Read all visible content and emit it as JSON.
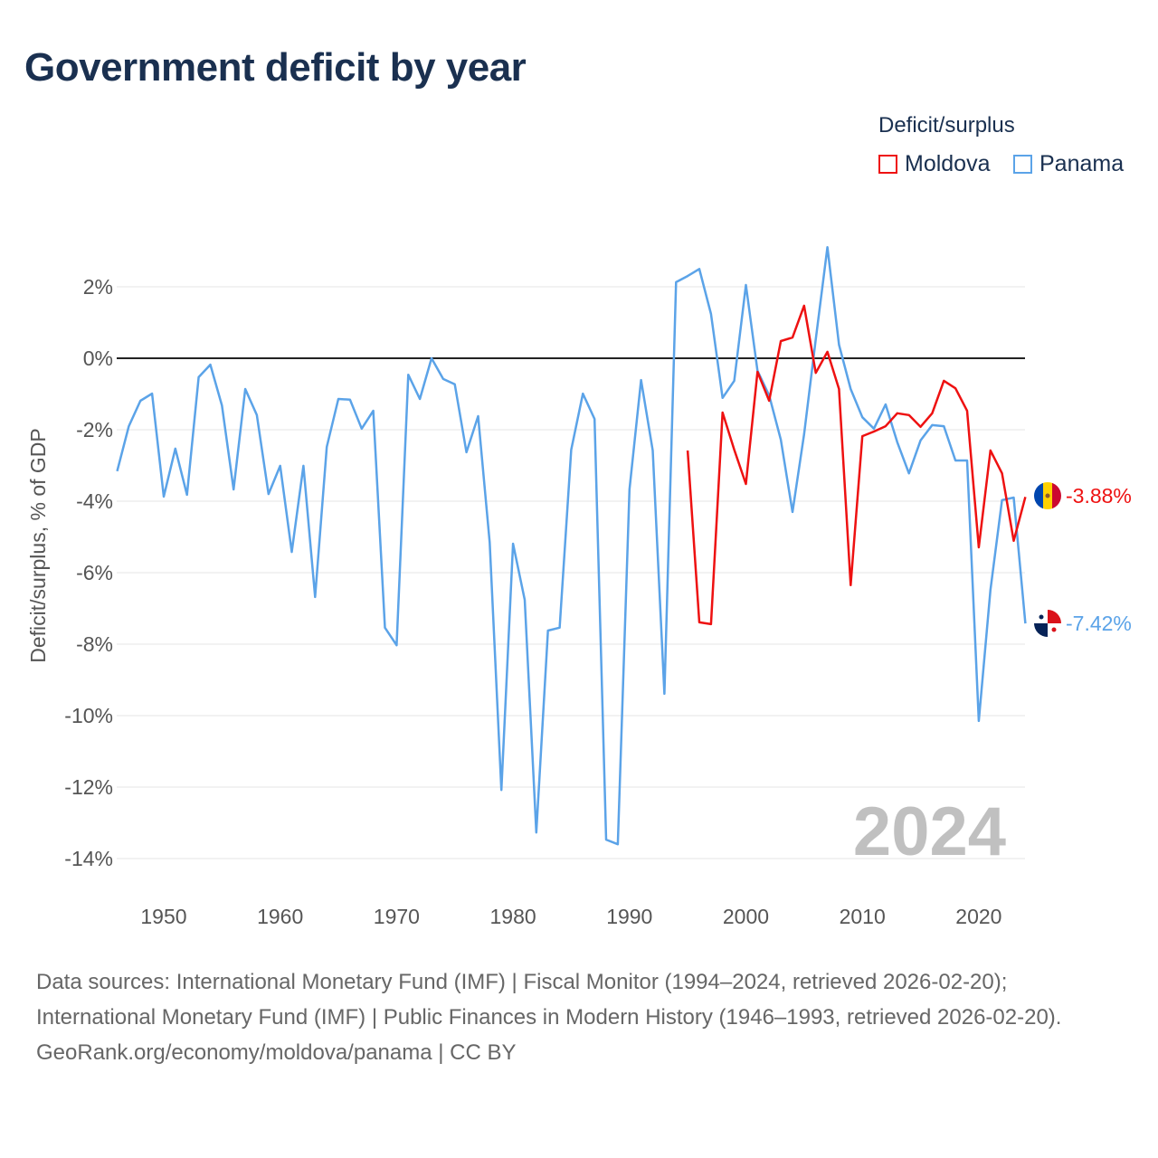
{
  "title": "Government deficit by year",
  "legend": {
    "title": "Deficit/surplus",
    "items": [
      {
        "label": "Moldova",
        "color": "#ee1111"
      },
      {
        "label": "Panama",
        "color": "#5ba3e8"
      }
    ]
  },
  "sources": {
    "line1": "Data sources: International Monetary Fund (IMF) | Fiscal Monitor (1994–2024, retrieved 2026-02-20); International Monetary Fund (IMF) | Public Finances in Modern History (1946–1993, retrieved 2026-02-20).",
    "line2": "GeoRank.org/economy/moldova/panama | CC BY"
  },
  "chart_data": {
    "type": "line",
    "title": "Government deficit by year",
    "xlabel": "",
    "ylabel": "Deficit/surplus, % of GDP",
    "xlim": [
      1946,
      2024
    ],
    "ylim": [
      -15,
      3.5
    ],
    "yticks": [
      2,
      0,
      -2,
      -4,
      -6,
      -8,
      -10,
      -12,
      -14
    ],
    "ytick_labels": [
      "2%",
      "0%",
      "-2%",
      "-4%",
      "-6%",
      "-8%",
      "-10%",
      "-12%",
      "-14%"
    ],
    "xticks": [
      1950,
      1960,
      1970,
      1980,
      1990,
      2000,
      2010,
      2020
    ],
    "xtick_labels": [
      "1950",
      "1960",
      "1970",
      "1980",
      "1990",
      "2000",
      "2010",
      "2020"
    ],
    "year_watermark": "2024",
    "series": [
      {
        "name": "Moldova",
        "color": "#ee1111",
        "end_label": "-3.88%",
        "start": 1995,
        "values": [
          -2.58,
          -7.39,
          -7.44,
          -1.52,
          -2.56,
          -3.52,
          -0.38,
          -1.19,
          0.48,
          0.58,
          1.47,
          -0.41,
          0.18,
          -0.86,
          -6.35,
          -2.18,
          -2.05,
          -1.9,
          -1.54,
          -1.59,
          -1.92,
          -1.54,
          -0.63,
          -0.84,
          -1.47,
          -5.29,
          -2.58,
          -3.22,
          -5.11,
          -3.88
        ]
      },
      {
        "name": "Panama",
        "color": "#5ba3e8",
        "end_label": "-7.42%",
        "start": 1946,
        "values": [
          -3.16,
          -1.9,
          -1.19,
          -0.99,
          -3.87,
          -2.53,
          -3.82,
          -0.53,
          -0.18,
          -1.32,
          -3.67,
          -0.86,
          -1.59,
          -3.8,
          -3.01,
          -5.42,
          -3.01,
          -6.68,
          -2.48,
          -1.14,
          -1.16,
          -1.97,
          -1.47,
          -7.54,
          -8.03,
          -0.46,
          -1.14,
          0,
          -0.58,
          -0.73,
          -2.63,
          -1.62,
          -5.16,
          -12.08,
          -5.19,
          -6.76,
          -13.27,
          -7.62,
          -7.54,
          -2.56,
          -0.99,
          -1.7,
          -13.47,
          -13.6,
          -3.67,
          -0.61,
          -2.58,
          -9.39,
          2.13,
          2.3,
          2.5,
          1.24,
          -1.11,
          -0.63,
          2.05,
          -0.35,
          -1.04,
          -2.28,
          -4.3,
          -2.13,
          0.53,
          3.11,
          0.38,
          -0.86,
          -1.65,
          -1.97,
          -1.29,
          -2.35,
          -3.22,
          -2.3,
          -1.87,
          -1.9,
          -2.86,
          -2.86,
          -10.15,
          -6.48,
          -3.97,
          -3.9,
          -7.42
        ]
      }
    ]
  }
}
